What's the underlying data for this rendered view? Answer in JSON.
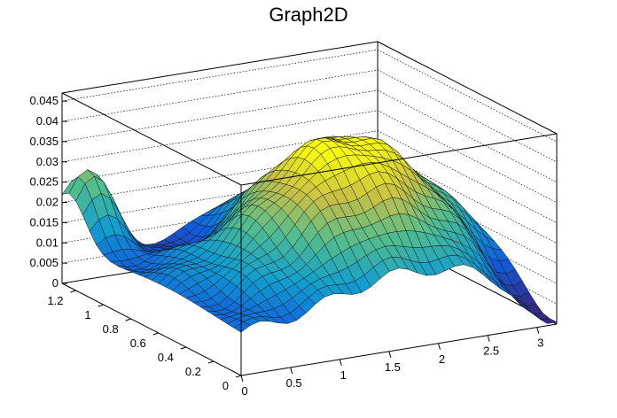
{
  "chart_data": {
    "type": "surface",
    "title": "Graph2D",
    "xlabel": "",
    "ylabel": "",
    "zlabel": "",
    "xlim": [
      0,
      3.2
    ],
    "ylim": [
      0,
      1.3
    ],
    "zlim": [
      0,
      0.047
    ],
    "x_ticks": [
      "0",
      "0.5",
      "1",
      "1.5",
      "2",
      "2.5",
      "3"
    ],
    "y_ticks": [
      "0",
      "0.2",
      "0.4",
      "0.6",
      "0.8",
      "1",
      "1.2"
    ],
    "z_ticks": [
      "0",
      "0.005",
      "0.01",
      "0.015",
      "0.02",
      "0.025",
      "0.03",
      "0.035",
      "0.04",
      "0.045"
    ],
    "grid": true,
    "colormap": "viridis-like (blue to yellow)",
    "surface_samples": [
      {
        "x": 0.0,
        "y": 0.0,
        "z": 0.004
      },
      {
        "x": 1.0,
        "y": 0.0,
        "z": 0.015
      },
      {
        "x": 2.0,
        "y": 0.0,
        "z": 0.012
      },
      {
        "x": 3.2,
        "y": 0.0,
        "z": 0.002
      },
      {
        "x": 0.0,
        "y": 0.65,
        "z": 0.012
      },
      {
        "x": 1.6,
        "y": 0.65,
        "z": 0.038
      },
      {
        "x": 2.6,
        "y": 0.65,
        "z": 0.028
      },
      {
        "x": 3.2,
        "y": 0.65,
        "z": 0.02
      },
      {
        "x": 0.0,
        "y": 1.3,
        "z": 0.02
      },
      {
        "x": 0.2,
        "y": 1.3,
        "z": 0.034
      },
      {
        "x": 1.6,
        "y": 1.3,
        "z": 0.01
      },
      {
        "x": 3.2,
        "y": 1.3,
        "z": 0.018
      }
    ]
  }
}
